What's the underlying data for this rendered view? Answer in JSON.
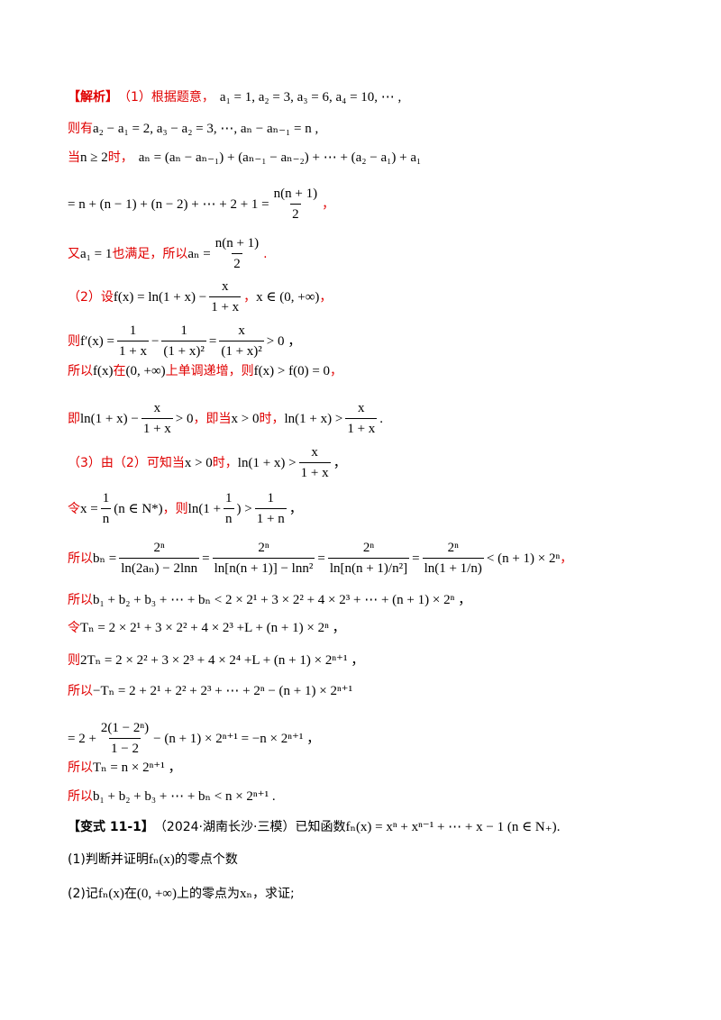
{
  "lines": {
    "l1_label": "【解析】",
    "l1_text": "（1）根据题意，",
    "l1_math": "a₁ = 1, a₂ = 3, a₃ = 6, a₄ = 10, ⋯ ,",
    "l2_text": "则有",
    "l2_math": "a₂ − a₁ = 2, a₃ − a₂ = 3, ⋯, aₙ − aₙ₋₁ = n ,",
    "l3_text": "当",
    "l3_cond": "n ≥ 2",
    "l3_text2": "时，",
    "l3_math": "aₙ = (aₙ − aₙ₋₁) + (aₙ₋₁ − aₙ₋₂) + ⋯ + (a₂ − a₁) + a₁",
    "l4_math": "= n + (n − 1) + (n − 2) + ⋯ + 2 + 1 =",
    "l4_num": "n(n + 1)",
    "l4_den": "2",
    "l4_end": "，",
    "l5_text": "又",
    "l5_cond": "a₁ = 1",
    "l5_text2": "也满足，所以",
    "l5_math": "aₙ =",
    "l5_num": "n(n + 1)",
    "l5_den": "2",
    "l5_end": ".",
    "l6_text": "（2）设",
    "l6_math": "f(x) = ln(1 + x) −",
    "l6_num": "x",
    "l6_den": "1 + x",
    "l6_mid": "，",
    "l6_math2": "x ∈ (0, +∞)",
    "l6_end": "，",
    "l7_text": "则",
    "l7_math": "f′(x) =",
    "l7_f1n": "1",
    "l7_f1d": "1 + x",
    "l7_minus": "−",
    "l7_f2n": "1",
    "l7_f2d": "(1 + x)²",
    "l7_eq": "=",
    "l7_f3n": "x",
    "l7_f3d": "(1 + x)²",
    "l7_end": "> 0 ，",
    "l8_text": "所以",
    "l8_m1": "f(x)",
    "l8_t2": "在",
    "l8_m2": "(0, +∞)",
    "l8_t3": "上单调递增，则",
    "l8_m3": "f(x) > f(0) = 0",
    "l8_end": "，",
    "l9_text": "即",
    "l9_m1": "ln(1 + x) −",
    "l9_f1n": "x",
    "l9_f1d": "1 + x",
    "l9_m2": "> 0",
    "l9_t2": "，即当",
    "l9_m3": "x > 0",
    "l9_t3": "时，",
    "l9_m4": "ln(1 + x) >",
    "l9_f2n": "x",
    "l9_f2d": "1 + x",
    "l9_end": ".",
    "l10_text": "（3）由（2）可知当",
    "l10_m1": "x > 0",
    "l10_t2": "时，",
    "l10_m2": "ln(1 + x) >",
    "l10_fn": "x",
    "l10_fd": "1 + x",
    "l10_end": "，",
    "l11_text": "令",
    "l11_m1": "x =",
    "l11_fn": "1",
    "l11_fd": "n",
    "l11_m2": "(n ∈ N*)",
    "l11_t2": "，则",
    "l11_m3": "ln(1 +",
    "l11_f2n": "1",
    "l11_f2d": "n",
    "l11_m4": ") >",
    "l11_f3n": "1",
    "l11_f3d": "1 + n",
    "l11_end": "，",
    "l12_text": "所以",
    "l12_lhs": "bₙ =",
    "l12_f1n": "2ⁿ",
    "l12_f1d": "ln(2aₙ) − 2lnn",
    "l12_f2n": "2ⁿ",
    "l12_f2d": "ln[n(n + 1)] − lnn²",
    "l12_f3n": "2ⁿ",
    "l12_f3d": "ln[n(n + 1)/n²]",
    "l12_f4n": "2ⁿ",
    "l12_f4d": "ln(1 + 1/n)",
    "l12_end": "< (n + 1) × 2ⁿ",
    "l12_comma": "，",
    "l13_text": "所以",
    "l13_math": "b₁ + b₂ + b₃ + ⋯ + bₙ < 2 × 2¹ + 3 × 2² + 4 × 2³ + ⋯ + (n + 1) × 2ⁿ ，",
    "l14_text": "令",
    "l14_math": "Tₙ = 2 × 2¹ + 3 × 2² + 4 × 2³ +L + (n + 1) × 2ⁿ ，",
    "l15_text": "则",
    "l15_math": "2Tₙ = 2 × 2² + 3 × 2³ + 4 × 2⁴ +L + (n + 1) × 2ⁿ⁺¹ ，",
    "l16_text": "所以",
    "l16_math": "−Tₙ = 2 + 2¹ + 2² + 2³ + ⋯ + 2ⁿ − (n + 1) × 2ⁿ⁺¹",
    "l17_m1": "= 2 +",
    "l17_fn": "2(1 − 2ⁿ)",
    "l17_fd": "1 − 2",
    "l17_m2": "− (n + 1) × 2ⁿ⁺¹ = −n × 2ⁿ⁺¹ ，",
    "l18_text": "所以",
    "l18_math": "Tₙ = n × 2ⁿ⁺¹ ，",
    "l19_text": "所以",
    "l19_math": "b₁ + b₂ + b₃ + ⋯ + bₙ < n × 2ⁿ⁺¹ .",
    "l20_label": "【变式 11-1】",
    "l20_text": "（2024·湖南长沙·三模）已知函数",
    "l20_math": "fₙ(x) = xⁿ + xⁿ⁻¹ + ⋯ + x − 1 (n ∈ N₊)",
    "l20_end": ".",
    "l21_text": "(1)判断并证明",
    "l21_math": "fₙ(x)",
    "l21_text2": "的零点个数",
    "l22_text": "(2)记",
    "l22_m1": "fₙ(x)",
    "l22_t2": "在",
    "l22_m2": "(0, +∞)",
    "l22_t3": "上的零点为",
    "l22_m3": "xₙ",
    "l22_t4": "，求证;"
  }
}
